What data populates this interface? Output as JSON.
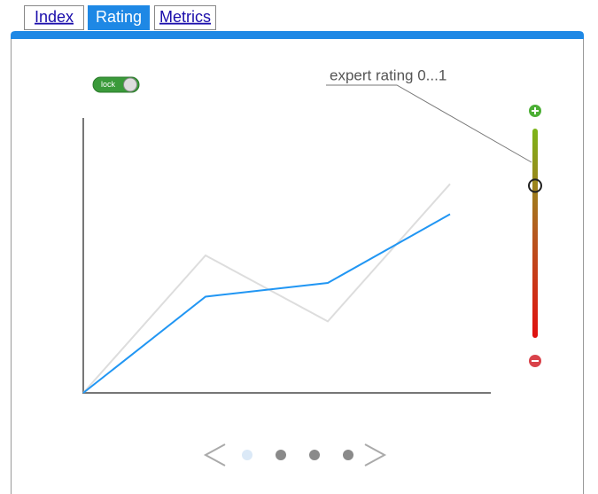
{
  "tabs": [
    "Index",
    "Rating",
    "Metrics"
  ],
  "active_tab": 1,
  "lock_label": "lock",
  "callout": "expert rating 0...1",
  "slider": {
    "value": 0.73
  },
  "chart": {
    "type": "line",
    "series": [
      {
        "color": "#dddddd",
        "values": [
          0,
          0.5,
          0.26,
          0.76
        ]
      },
      {
        "color": "#2196f3",
        "values": [
          0,
          0.35,
          0.4,
          0.65
        ]
      }
    ]
  },
  "pager": {
    "pages": 4,
    "active": 0
  }
}
